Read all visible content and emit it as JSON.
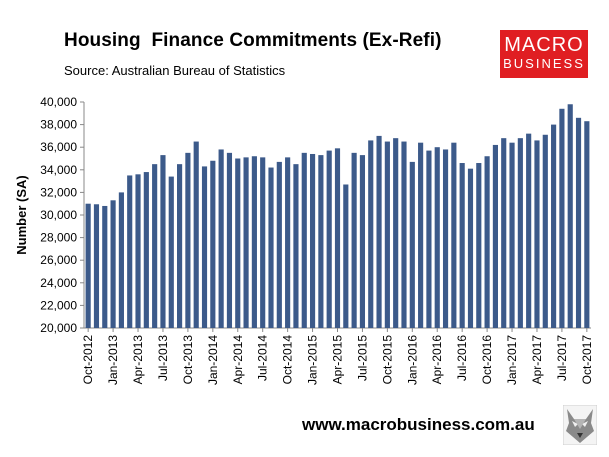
{
  "title": "Housing  Finance Commitments (Ex-Refi)",
  "subtitle": "Source: Australian Bureau of Statistics",
  "logo": {
    "line1": "MACRO",
    "line2": "BUSINESS",
    "color": "#e01e22"
  },
  "footer": {
    "url": "www.macrobusiness.com.au"
  },
  "chart_data": {
    "type": "bar",
    "title": "Housing  Finance Commitments (Ex-Refi)",
    "ylabel": "Number (SA)",
    "xlabel": "",
    "ylim": [
      20000,
      40000
    ],
    "yticks": [
      "20,000",
      "22,000",
      "24,000",
      "26,000",
      "28,000",
      "30,000",
      "32,000",
      "34,000",
      "36,000",
      "38,000",
      "40,000"
    ],
    "ytick_values": [
      20000,
      22000,
      24000,
      26000,
      28000,
      30000,
      32000,
      34000,
      36000,
      38000,
      40000
    ],
    "bar_color": "#3c5a8a",
    "grid": false,
    "categories": [
      "Oct-2012",
      "Nov-2012",
      "Dec-2012",
      "Jan-2013",
      "Feb-2013",
      "Mar-2013",
      "Apr-2013",
      "May-2013",
      "Jun-2013",
      "Jul-2013",
      "Aug-2013",
      "Sep-2013",
      "Oct-2013",
      "Nov-2013",
      "Dec-2013",
      "Jan-2014",
      "Feb-2014",
      "Mar-2014",
      "Apr-2014",
      "May-2014",
      "Jun-2014",
      "Jul-2014",
      "Aug-2014",
      "Sep-2014",
      "Oct-2014",
      "Nov-2014",
      "Dec-2014",
      "Jan-2015",
      "Feb-2015",
      "Mar-2015",
      "Apr-2015",
      "May-2015",
      "Jun-2015",
      "Jul-2015",
      "Aug-2015",
      "Sep-2015",
      "Oct-2015",
      "Nov-2015",
      "Dec-2015",
      "Jan-2016",
      "Feb-2016",
      "Mar-2016",
      "Apr-2016",
      "May-2016",
      "Jun-2016",
      "Jul-2016",
      "Aug-2016",
      "Sep-2016",
      "Oct-2016",
      "Nov-2016",
      "Dec-2016",
      "Jan-2017",
      "Feb-2017",
      "Mar-2017",
      "Apr-2017",
      "May-2017",
      "Jun-2017",
      "Jul-2017",
      "Aug-2017",
      "Sep-2017",
      "Oct-2017"
    ],
    "values": [
      31000,
      30950,
      30800,
      31300,
      32000,
      33500,
      33600,
      33800,
      34500,
      35300,
      33400,
      34500,
      35500,
      36500,
      34300,
      34800,
      35800,
      35500,
      35000,
      35100,
      35200,
      35100,
      34200,
      34700,
      35100,
      34500,
      35500,
      35400,
      35300,
      35700,
      35900,
      32700,
      35500,
      35300,
      36600,
      37000,
      36500,
      36800,
      36500,
      34700,
      36400,
      35700,
      36000,
      35800,
      36400,
      34600,
      34100,
      34600,
      35200,
      36200,
      36800,
      36400,
      36800,
      37200,
      36600,
      37100,
      38000,
      39400,
      39800,
      38600,
      38300
    ],
    "xtick_labels": [
      "Oct-2012",
      "Jan-2013",
      "Apr-2013",
      "Jul-2013",
      "Oct-2013",
      "Jan-2014",
      "Apr-2014",
      "Jul-2014",
      "Oct-2014",
      "Jan-2015",
      "Apr-2015",
      "Jul-2015",
      "Oct-2015",
      "Jan-2016",
      "Apr-2016",
      "Jul-2016",
      "Oct-2016",
      "Jan-2017",
      "Apr-2017",
      "Jul-2017",
      "Oct-2017"
    ]
  }
}
